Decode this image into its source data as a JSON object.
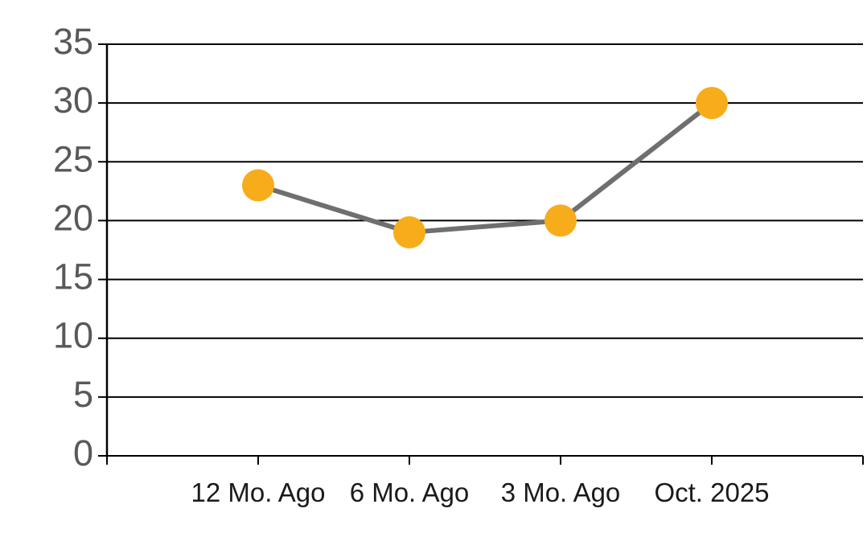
{
  "chart_data": {
    "type": "line",
    "title": "",
    "xlabel": "",
    "ylabel": "",
    "categories": [
      "12 Mo. Ago",
      "6 Mo. Ago",
      "3 Mo. Ago",
      "Oct. 2025"
    ],
    "values": [
      23,
      19,
      20,
      30
    ],
    "ylim": [
      0,
      35
    ],
    "y_ticks": [
      0,
      5,
      10,
      15,
      20,
      25,
      30,
      35
    ],
    "grid": true,
    "legend": false,
    "colors": {
      "marker": "#F7AC1B",
      "line": "#6F6F6F",
      "gridline": "#000000",
      "axis": "#000000",
      "y_label": "#595959",
      "x_label": "#1A1A1A",
      "background": "#FFFFFF"
    }
  }
}
